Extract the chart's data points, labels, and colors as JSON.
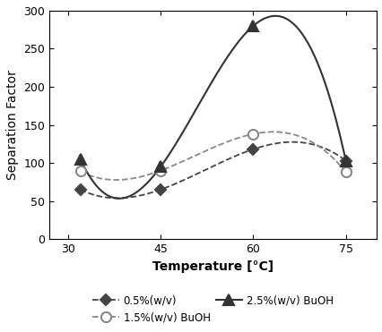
{
  "temperatures": [
    32,
    45,
    60,
    75
  ],
  "series": [
    {
      "label": "0.5%(w/v)",
      "values": [
        65,
        65,
        118,
        103
      ],
      "linestyle": "--",
      "marker": "D",
      "markersize": 6,
      "color": "#444444",
      "markerfacecolor": "#444444",
      "markeredgecolor": "#444444",
      "linewidth": 1.3
    },
    {
      "label": "1.5%(w/v) BuOH",
      "values": [
        89,
        90,
        138,
        88
      ],
      "linestyle": "--",
      "marker": "o",
      "markersize": 8,
      "color": "#888888",
      "markerfacecolor": "#ffffff",
      "markeredgecolor": "#888888",
      "linewidth": 1.3
    },
    {
      "label": "2.5%(w/v) BuOH",
      "values": [
        105,
        95,
        280,
        103
      ],
      "linestyle": "-",
      "marker": "^",
      "markersize": 8,
      "color": "#333333",
      "markerfacecolor": "#333333",
      "markeredgecolor": "#333333",
      "linewidth": 1.5
    }
  ],
  "xlabel": "Temperature [°C]",
  "ylabel": "Separation Factor",
  "xlim": [
    27,
    80
  ],
  "ylim": [
    0,
    300
  ],
  "xticks": [
    30,
    45,
    60,
    75
  ],
  "yticks": [
    0,
    50,
    100,
    150,
    200,
    250,
    300
  ],
  "background_color": "#ffffff",
  "legend_fontsize": 8.5,
  "figsize": [
    4.27,
    3.71
  ],
  "dpi": 100
}
